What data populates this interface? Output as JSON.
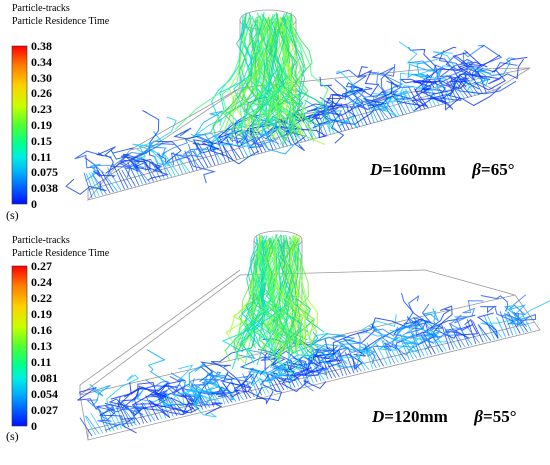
{
  "panels": [
    {
      "id": "top",
      "title": "Particle-tracks",
      "variable": "Particle Residence Time",
      "ticks": [
        "0.38",
        "0.34",
        "0.30",
        "0.26",
        "0.23",
        "0.19",
        "0.15",
        "0.11",
        "0.075",
        "0.038",
        "0"
      ],
      "unit": "(s)",
      "params": {
        "d_symbol": "D",
        "d_value": "=160mm",
        "b_symbol": "β",
        "b_value": "=65°"
      }
    },
    {
      "id": "bottom",
      "title": "Particle-tracks",
      "variable": "Particle Residence Time",
      "ticks": [
        "0.27",
        "0.24",
        "0.22",
        "0.19",
        "0.16",
        "0.13",
        "0.11",
        "0.081",
        "0.054",
        "0.027",
        "0"
      ],
      "unit": "(s)",
      "params": {
        "d_symbol": "D",
        "d_value": "=120mm",
        "b_symbol": "β",
        "b_value": "=55°"
      }
    }
  ],
  "colormap": [
    "#ff0000",
    "#ff7a00",
    "#ffd000",
    "#c8ff00",
    "#50ff30",
    "#00ff90",
    "#00f0e0",
    "#00b0ff",
    "#0060ff",
    "#0010ff"
  ]
}
